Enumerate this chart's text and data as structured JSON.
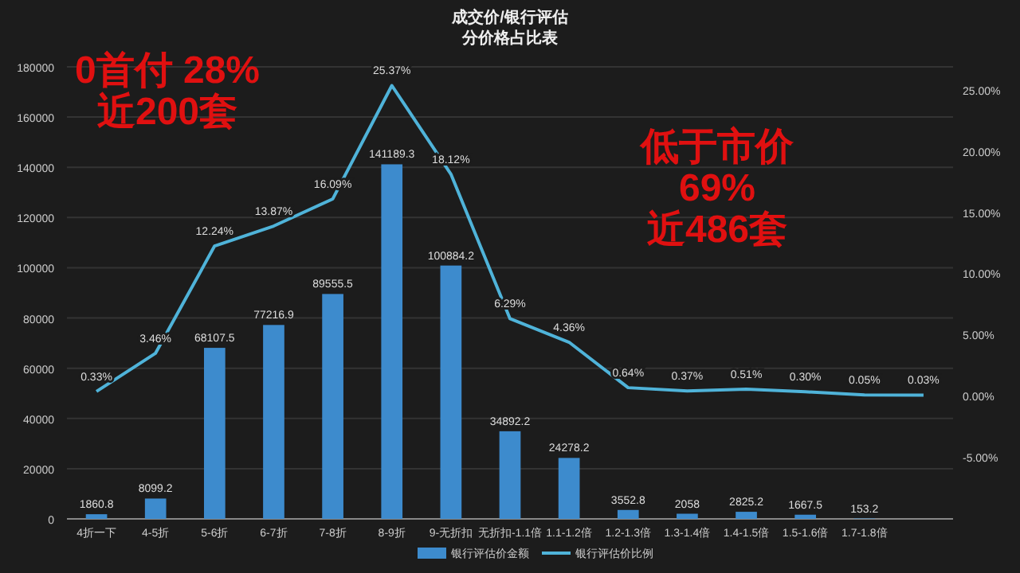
{
  "chart_data": {
    "type": "bar",
    "title": "成交价/银行评估",
    "subtitle": "分价格占比表",
    "categories": [
      "4折一下",
      "4-5折",
      "5-6折",
      "6-7折",
      "7-8折",
      "8-9折",
      "9-无折扣",
      "无折扣-1.1倍",
      "1.1-1.2倍",
      "1.2-1.3倍",
      "1.3-1.4倍",
      "1.4-1.5倍",
      "1.5-1.6倍",
      "1.7-1.8倍",
      null
    ],
    "series": [
      {
        "name": "银行评估价金额",
        "color": "#3d8bcd",
        "values": [
          1860.8,
          8099.2,
          68107.5,
          77216.9,
          89555.5,
          141189.3,
          100884.2,
          34892.2,
          24278.2,
          3552.8,
          2058,
          2825.2,
          1667.5,
          153.2,
          null
        ],
        "value_labels": [
          "1860.8",
          "8099.2",
          "68107.5",
          "77216.9",
          "89555.5",
          "141189.3",
          "100884.2",
          "34892.2",
          "24278.2",
          "3552.8",
          "2058",
          "2825.2",
          "1667.5",
          "153.2",
          null
        ]
      },
      {
        "name": "银行评估价比例",
        "type": "line",
        "axis": "y2",
        "color": "#4fb3d9",
        "values": [
          0.33,
          3.46,
          12.24,
          13.87,
          16.09,
          25.37,
          18.12,
          6.29,
          4.36,
          0.64,
          0.37,
          0.51,
          0.3,
          0.05,
          0.03
        ],
        "value_labels": [
          "0.33%",
          "3.46%",
          "12.24%",
          "13.87%",
          "16.09%",
          "25.37%",
          "18.12%",
          "6.29%",
          "4.36%",
          "0.64%",
          "0.37%",
          "0.51%",
          "0.30%",
          "0.05%",
          "0.03%"
        ]
      }
    ],
    "ylim": [
      0,
      180000
    ],
    "yticks": [
      0,
      20000,
      40000,
      60000,
      80000,
      100000,
      120000,
      140000,
      160000,
      180000
    ],
    "y2lim": [
      -10.1,
      26.9
    ],
    "y2ticks": [
      {
        "value": -5,
        "label": "-5.00%"
      },
      {
        "value": 0,
        "label": "0.00%"
      },
      {
        "value": 5,
        "label": "5.00%"
      },
      {
        "value": 10,
        "label": "10.00%"
      },
      {
        "value": 15,
        "label": "15.00%"
      },
      {
        "value": 20,
        "label": "20.00%"
      },
      {
        "value": 25,
        "label": "25.00%"
      }
    ],
    "grid": "y",
    "legend": "bottom",
    "annotations": [
      "0首付 28%\n近200套",
      "低于市价\n69%\n近486套"
    ]
  }
}
